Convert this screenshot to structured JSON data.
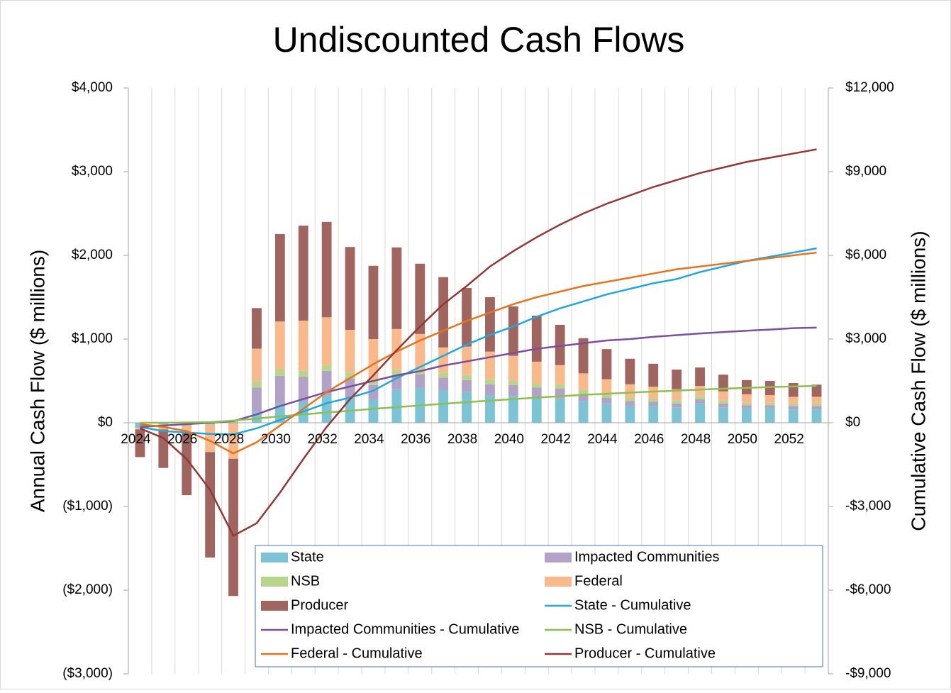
{
  "chart_data": {
    "type": "combo",
    "title": "Undiscounted Cash Flows",
    "y_label": "Annual Cash Flow ($ millions)",
    "y2_label": "Cumulative Cash Flow ($ millions)",
    "categories": [
      "2024",
      null,
      "2026",
      null,
      "2028",
      null,
      "2030",
      null,
      "2032",
      null,
      "2034",
      null,
      "2036",
      null,
      "2038",
      null,
      "2040",
      null,
      "2042",
      null,
      "2044",
      null,
      "2046",
      null,
      "2048",
      null,
      "2050",
      null,
      "2052",
      null
    ],
    "ylim": [
      -3000,
      4000
    ],
    "yticks": [
      {
        "value": 4000,
        "label": "$4,000"
      },
      {
        "value": 3000,
        "label": "$3,000"
      },
      {
        "value": 2000,
        "label": "$2,000"
      },
      {
        "value": 1000,
        "label": "$1,000"
      },
      {
        "value": 0,
        "label": "$0"
      },
      {
        "value": -1000,
        "label": "($1,000)"
      },
      {
        "value": -2000,
        "label": "($2,000)"
      },
      {
        "value": -3000,
        "label": "($3,000)"
      }
    ],
    "y2lim": [
      -9000,
      12000
    ],
    "y2ticks": [
      {
        "value": 12000,
        "label": "$12,000"
      },
      {
        "value": 9000,
        "label": "$9,000"
      },
      {
        "value": 6000,
        "label": "$6,000"
      },
      {
        "value": 3000,
        "label": "$3,000"
      },
      {
        "value": 0,
        "label": "$0"
      },
      {
        "value": -3000,
        "label": "-$3,000"
      },
      {
        "value": -6000,
        "label": "-$6,000"
      },
      {
        "value": -9000,
        "label": "-$9,000"
      }
    ],
    "stacked": true,
    "legend": "bottom-right",
    "series": [
      {
        "name": "State",
        "type": "bar",
        "color": "#7bc3d5",
        "values": [
          -60,
          -20,
          -30,
          -20,
          -10,
          130,
          230,
          250,
          330,
          300,
          280,
          400,
          420,
          390,
          370,
          330,
          320,
          300,
          290,
          260,
          230,
          200,
          200,
          180,
          230,
          180,
          170,
          170,
          160,
          160
        ]
      },
      {
        "name": "Impacted Communities",
        "type": "bar",
        "color": "#b3a2c7",
        "values": [
          0,
          0,
          0,
          0,
          0,
          290,
          330,
          300,
          290,
          230,
          170,
          170,
          160,
          150,
          140,
          130,
          130,
          120,
          120,
          80,
          70,
          60,
          50,
          50,
          50,
          50,
          40,
          40,
          40,
          40
        ]
      },
      {
        "name": "NSB",
        "type": "bar",
        "color": "#b8d58c",
        "values": [
          0,
          0,
          0,
          0,
          30,
          75,
          80,
          70,
          70,
          70,
          60,
          60,
          60,
          60,
          60,
          60,
          50,
          50,
          50,
          50,
          40,
          40,
          40,
          40,
          40,
          35,
          30,
          30,
          30,
          30
        ]
      },
      {
        "name": "Federal",
        "type": "bar",
        "color": "#fab98a",
        "values": [
          -20,
          -60,
          -80,
          -330,
          -420,
          390,
          570,
          600,
          570,
          510,
          490,
          490,
          420,
          300,
          340,
          330,
          300,
          260,
          230,
          200,
          180,
          160,
          140,
          130,
          120,
          110,
          100,
          90,
          80,
          80
        ]
      },
      {
        "name": "Producer",
        "type": "bar",
        "color": "#a0655f",
        "values": [
          -330,
          -460,
          -755,
          -1260,
          -1640,
          485,
          1045,
          1135,
          1140,
          990,
          875,
          975,
          840,
          840,
          700,
          650,
          590,
          550,
          480,
          420,
          360,
          305,
          275,
          235,
          220,
          200,
          170,
          170,
          165,
          145
        ]
      },
      {
        "name": "State - Cumulative",
        "type": "line",
        "axis": "y2",
        "color": "#1fa8e0",
        "values": [
          -150,
          -300,
          -350,
          -400,
          -420,
          -200,
          100,
          400,
          700,
          900,
          1150,
          1600,
          2000,
          2400,
          2800,
          3150,
          3450,
          3800,
          4100,
          4350,
          4600,
          4800,
          5000,
          5150,
          5400,
          5600,
          5800,
          5950,
          6100,
          6250
        ]
      },
      {
        "name": "Impacted Communities - Cumulative",
        "type": "line",
        "axis": "y2",
        "color": "#7b4f9e",
        "values": [
          -150,
          -100,
          -50,
          0,
          60,
          300,
          600,
          850,
          1100,
          1300,
          1500,
          1700,
          1850,
          2050,
          2200,
          2350,
          2500,
          2650,
          2750,
          2850,
          2950,
          3000,
          3080,
          3140,
          3200,
          3250,
          3300,
          3340,
          3390,
          3410
        ]
      },
      {
        "name": "NSB - Cumulative",
        "type": "line",
        "axis": "y2",
        "color": "#8dc04f",
        "values": [
          0,
          0,
          10,
          20,
          80,
          150,
          230,
          300,
          370,
          430,
          500,
          560,
          620,
          680,
          740,
          790,
          850,
          900,
          950,
          1000,
          1040,
          1080,
          1120,
          1150,
          1190,
          1220,
          1250,
          1280,
          1300,
          1320
        ]
      },
      {
        "name": "Federal - Cumulative",
        "type": "line",
        "axis": "y2",
        "color": "#e8731c",
        "values": [
          -50,
          -150,
          -300,
          -650,
          -1100,
          -700,
          -100,
          500,
          1100,
          1600,
          2100,
          2550,
          2950,
          3300,
          3650,
          3950,
          4250,
          4500,
          4700,
          4900,
          5050,
          5200,
          5350,
          5500,
          5600,
          5700,
          5800,
          5900,
          6000,
          6100
        ]
      },
      {
        "name": "Producer - Cumulative",
        "type": "line",
        "axis": "y2",
        "color": "#953735",
        "values": [
          -200,
          -550,
          -1300,
          -2400,
          -4050,
          -3600,
          -2500,
          -1300,
          -150,
          850,
          1700,
          2600,
          3450,
          4250,
          4900,
          5600,
          6150,
          6650,
          7100,
          7500,
          7850,
          8150,
          8450,
          8700,
          8950,
          9150,
          9350,
          9500,
          9650,
          9800
        ]
      }
    ]
  }
}
